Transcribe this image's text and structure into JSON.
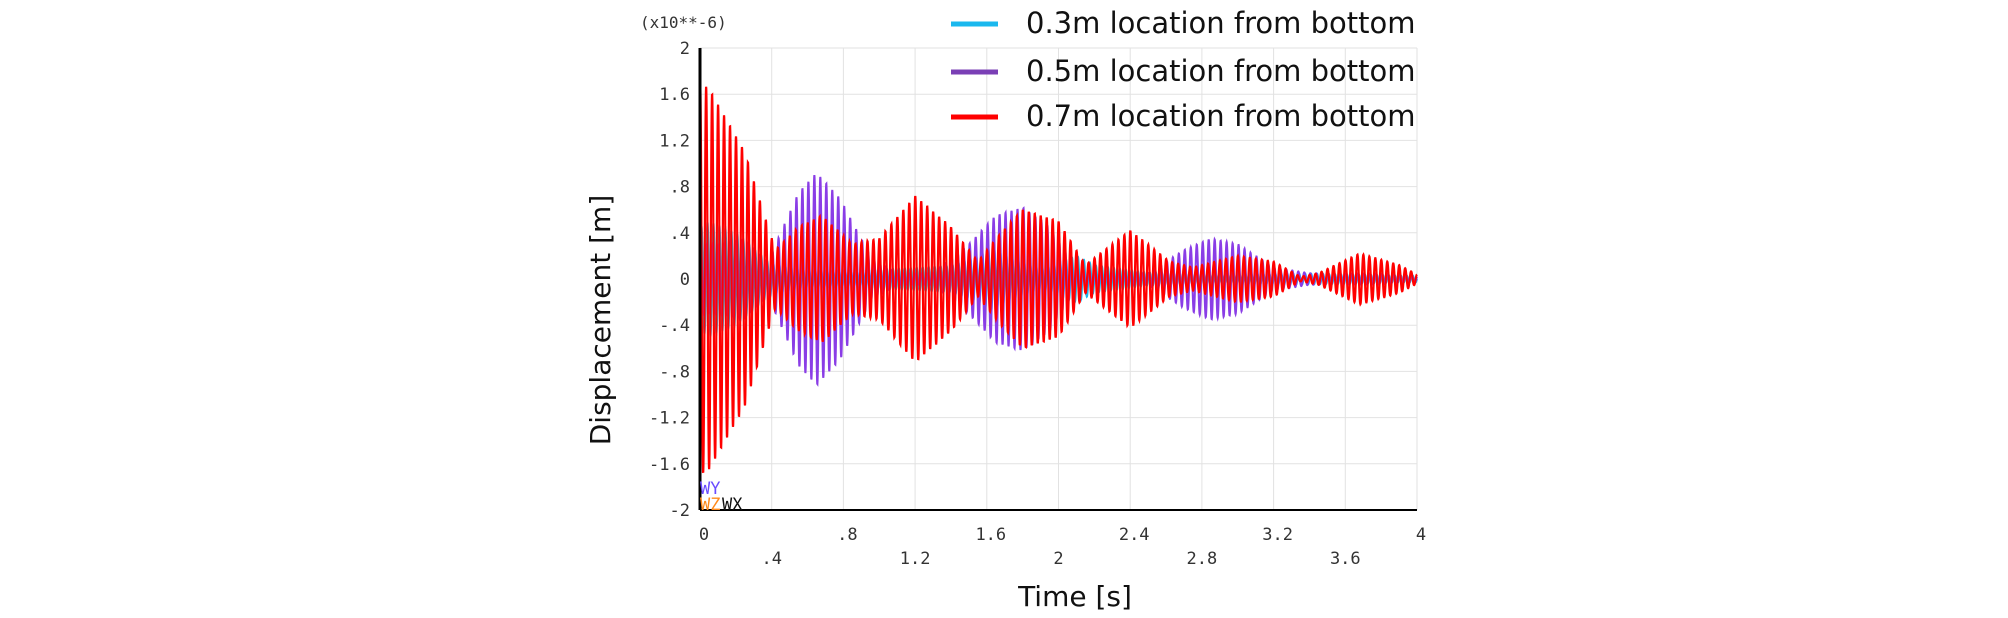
{
  "chart_data": {
    "type": "line",
    "scale_note": "(x10**-6)",
    "xlabel": "Time [s]",
    "ylabel": "Displacement [m]",
    "xlim": [
      0,
      4
    ],
    "ylim": [
      -2,
      2
    ],
    "grid": true,
    "legend_position": "top-right",
    "x_ticks_upper": [
      "0",
      ".8",
      "1.6",
      "2.4",
      "3.2",
      "4"
    ],
    "x_ticks_lower": [
      ".4",
      "1.2",
      "2",
      "2.8",
      "3.6"
    ],
    "x_tick_values_upper": [
      0,
      0.8,
      1.6,
      2.4,
      3.2,
      4
    ],
    "x_tick_values_lower": [
      0.4,
      1.2,
      2.0,
      2.8,
      3.6
    ],
    "y_ticks": [
      "2",
      "1.6",
      "1.2",
      ".8",
      ".4",
      "0",
      "-.4",
      "-.8",
      "-1.2",
      "-1.6",
      "-2"
    ],
    "y_tick_values": [
      2,
      1.6,
      1.2,
      0.8,
      0.4,
      0,
      -0.4,
      -0.8,
      -1.2,
      -1.6,
      -2
    ],
    "oscillation_frequency_hz": 30,
    "series": [
      {
        "name": "0.3m location from bottom",
        "color": "#1ab8ee",
        "envelope": {
          "t": [
            0,
            0.05,
            0.2,
            0.38,
            0.6,
            0.9,
            1.2,
            1.4,
            1.55,
            1.62,
            1.75,
            1.9,
            2.1,
            2.2,
            2.5,
            2.9,
            3.3,
            3.7,
            4.0
          ],
          "amplitude": [
            0.45,
            0.5,
            0.4,
            0.15,
            0.08,
            0.08,
            0.1,
            0.12,
            0.2,
            0.28,
            0.18,
            0.1,
            0.2,
            0.12,
            0.06,
            0.05,
            0.05,
            0.04,
            0.03
          ]
        }
      },
      {
        "name": "0.5m location from bottom",
        "color": "#8a3de6",
        "envelope": {
          "t": [
            0,
            0.1,
            0.25,
            0.38,
            0.55,
            0.65,
            0.78,
            0.95,
            1.1,
            1.3,
            1.5,
            1.65,
            1.8,
            1.95,
            2.1,
            2.3,
            2.5,
            2.7,
            2.85,
            3.0,
            3.2,
            3.4,
            3.6,
            3.8,
            4.0
          ],
          "amplitude": [
            0.3,
            0.3,
            0.35,
            0.15,
            0.75,
            0.92,
            0.7,
            0.2,
            0.05,
            0.05,
            0.3,
            0.55,
            0.62,
            0.45,
            0.1,
            0.05,
            0.05,
            0.25,
            0.35,
            0.3,
            0.1,
            0.05,
            0.05,
            0.05,
            0.03
          ]
        }
      },
      {
        "name": "0.7m location from bottom",
        "color": "#ff0000",
        "envelope": {
          "t": [
            0,
            0.05,
            0.25,
            0.42,
            0.55,
            0.68,
            0.85,
            1.0,
            1.2,
            1.4,
            1.55,
            1.68,
            1.8,
            2.0,
            2.15,
            2.4,
            2.62,
            2.75,
            3.0,
            3.2,
            3.35,
            3.45,
            3.68,
            3.9,
            4.0
          ],
          "amplitude": [
            1.7,
            1.65,
            1.1,
            0.25,
            0.45,
            0.55,
            0.3,
            0.35,
            0.72,
            0.45,
            0.15,
            0.4,
            0.6,
            0.5,
            0.12,
            0.42,
            0.15,
            0.1,
            0.2,
            0.15,
            0.02,
            0.05,
            0.22,
            0.12,
            0.04
          ]
        }
      }
    ],
    "triad_labels": {
      "wy": "WY",
      "wz": "WZ",
      "wx": "WX"
    }
  }
}
